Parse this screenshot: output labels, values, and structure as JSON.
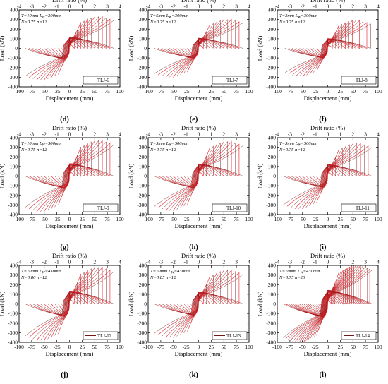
{
  "chart_data": [
    {
      "label": "(d)",
      "type": "line",
      "specimen": "TLJ-6",
      "legend": "TLJ-6",
      "params": [
        "T=10mm L",
        "N=0.75  n=12"
      ],
      "lw_value": "=300mm",
      "xlabel": "Displacement (mm)",
      "ylabel": "Load (kN)",
      "x2label": "Drift ratio (%)",
      "xlim": [
        -100,
        100
      ],
      "ylim": [
        -400,
        400
      ],
      "x2lim": [
        -4,
        4
      ],
      "peak_load": 330,
      "max_displacement": 88,
      "cycles": 12
    },
    {
      "label": "(e)",
      "type": "line",
      "specimen": "TLJ-7",
      "legend": "TLJ-7",
      "params": [
        "T=5mm L",
        "N=0.75  n=12"
      ],
      "lw_value": "=300mm",
      "xlabel": "Displacement (mm)",
      "ylabel": "Load (kN)",
      "x2label": "Drift ratio (%)",
      "xlim": [
        -100,
        100
      ],
      "ylim": [
        -400,
        400
      ],
      "x2lim": [
        -4,
        4
      ],
      "peak_load": 300,
      "max_displacement": 88,
      "cycles": 12
    },
    {
      "label": "(f)",
      "type": "line",
      "specimen": "TLJ-8",
      "legend": "TLJ-8",
      "params": [
        "T=3mm L",
        "N=0.75  n=12"
      ],
      "lw_value": "=300mm",
      "xlabel": "Displacement (mm)",
      "ylabel": "Load (kN)",
      "x2label": "Drift ratio (%)",
      "xlim": [
        -100,
        100
      ],
      "ylim": [
        -400,
        400
      ],
      "x2lim": [
        -4,
        4
      ],
      "peak_load": 290,
      "max_displacement": 85,
      "cycles": 12
    },
    {
      "label": "(g)",
      "type": "line",
      "specimen": "TLJ-9",
      "legend": "TLJ-9",
      "params": [
        "T=10mm L",
        "N=0.75  n=12"
      ],
      "lw_value": "=500mm",
      "xlabel": "Displacement (mm)",
      "ylabel": "Load (kN)",
      "x2label": "Drift ratio (%)",
      "xlim": [
        -100,
        100
      ],
      "ylim": [
        -400,
        400
      ],
      "x2lim": [
        -4,
        4
      ],
      "peak_load": 370,
      "max_displacement": 88,
      "cycles": 12
    },
    {
      "label": "(h)",
      "type": "line",
      "specimen": "TLJ-10",
      "legend": "TLJ-10",
      "params": [
        "T=5mm L",
        "N=0.75  n=12"
      ],
      "lw_value": "=500mm",
      "xlabel": "Displacement (mm)",
      "ylabel": "Load (kN)",
      "x2label": "Drift ratio (%)",
      "xlim": [
        -100,
        100
      ],
      "ylim": [
        -400,
        400
      ],
      "x2lim": [
        -4,
        4
      ],
      "peak_load": 360,
      "max_displacement": 88,
      "cycles": 12
    },
    {
      "label": "(i)",
      "type": "line",
      "specimen": "TLJ-11",
      "legend": "TLJ-11",
      "params": [
        "T=3mm L",
        "N=0.75  n=12"
      ],
      "lw_value": "=500mm",
      "xlabel": "Displacement (mm)",
      "ylabel": "Load (kN)",
      "x2label": "Drift ratio (%)",
      "xlim": [
        -100,
        100
      ],
      "ylim": [
        -400,
        400
      ],
      "x2lim": [
        -4,
        4
      ],
      "peak_load": 340,
      "max_displacement": 88,
      "cycles": 12
    },
    {
      "label": "(j)",
      "type": "line",
      "specimen": "TLJ-12",
      "legend": "TLJ-12",
      "params": [
        "T=10mm L",
        "N=0.80  n=12"
      ],
      "lw_value": "=430mm",
      "xlabel": "Displacement (mm)",
      "ylabel": "Load (kN)",
      "x2label": "Drift ratio (%)",
      "xlim": [
        -100,
        100
      ],
      "ylim": [
        -400,
        400
      ],
      "x2lim": [
        -4,
        4
      ],
      "peak_load": 380,
      "max_displacement": 88,
      "cycles": 12
    },
    {
      "label": "(k)",
      "type": "line",
      "specimen": "TLJ-13",
      "legend": "TLJ-13",
      "params": [
        "T=10mm L",
        "N=0.85  n=12"
      ],
      "lw_value": "=430mm",
      "xlabel": "Displacement (mm)",
      "ylabel": "Load (kN)",
      "x2label": "Drift ratio (%)",
      "xlim": [
        -100,
        100
      ],
      "ylim": [
        -400,
        400
      ],
      "x2lim": [
        -4,
        4
      ],
      "peak_load": 350,
      "max_displacement": 88,
      "cycles": 12
    },
    {
      "label": "(l)",
      "type": "line",
      "specimen": "TLJ-14",
      "legend": "TLJ-14",
      "params": [
        "T=10mm L",
        "N=0.75  n=20"
      ],
      "lw_value": "=430mm",
      "xlabel": "Displacement (mm)",
      "ylabel": "Load (kN)",
      "x2label": "Drift ratio (%)",
      "xlim": [
        -100,
        100
      ],
      "ylim": [
        -400,
        400
      ],
      "x2lim": [
        -4,
        4
      ],
      "peak_load": 400,
      "max_displacement": 88,
      "cycles": 20
    }
  ],
  "ticks": {
    "x": [
      "-100",
      "-75",
      "-50",
      "-25",
      "0",
      "25",
      "50",
      "75",
      "100"
    ],
    "y": [
      "400",
      "300",
      "200",
      "100",
      "0",
      "-100",
      "-200",
      "-300",
      "-400"
    ],
    "x2": [
      "-4",
      "-3",
      "-2",
      "-1",
      "0",
      "1",
      "2",
      "3",
      "4"
    ]
  },
  "colors": {
    "curve": "#e8202a",
    "curve_dark": "#6b1a16",
    "axis": "#000000"
  }
}
